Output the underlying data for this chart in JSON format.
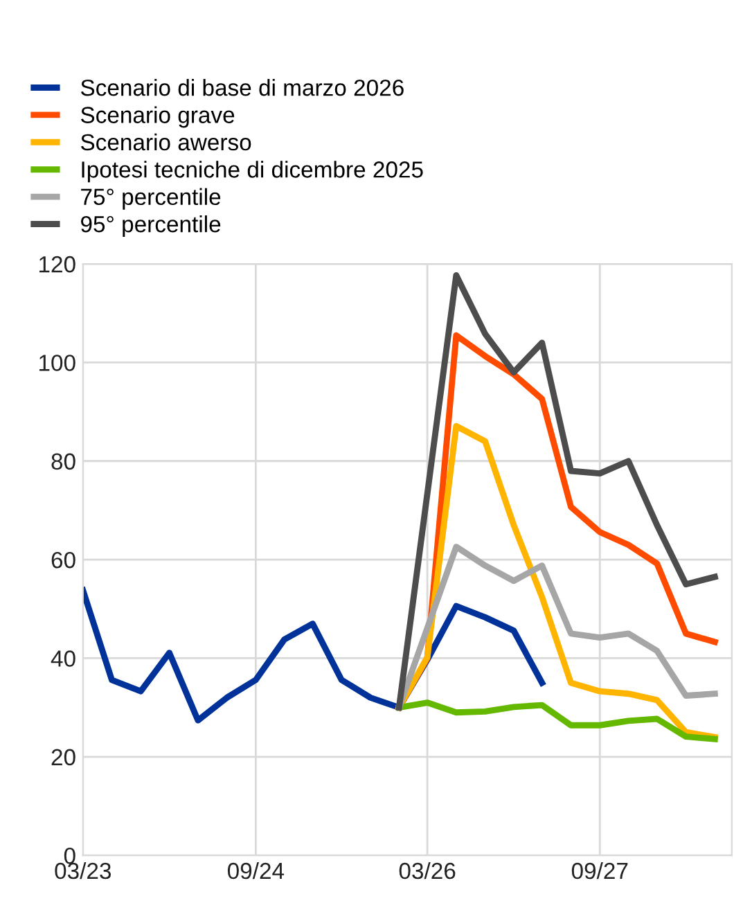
{
  "chart_data": {
    "type": "line",
    "series": [
      {
        "name": "Scenario di base di marzo 2026",
        "color": "#003299",
        "x": [
          "2023-03",
          "2023-06",
          "2023-09",
          "2023-12",
          "2024-03",
          "2024-06",
          "2024-09",
          "2024-12",
          "2025-03",
          "2025-06",
          "2025-09",
          "2025-12",
          "2026-03",
          "2026-06",
          "2026-09",
          "2026-12",
          "2027-03"
        ],
        "values": [
          53.8,
          35.6,
          33.3,
          41.1,
          27.4,
          32,
          35.6,
          43.8,
          47,
          35.6,
          32,
          30,
          39.7,
          50.6,
          48.3,
          45.6,
          35
        ]
      },
      {
        "name": "Scenario grave",
        "color": "#ff4b00",
        "x": [
          "2025-12",
          "2026-03",
          "2026-06",
          "2026-09",
          "2026-12",
          "2027-03",
          "2027-06",
          "2027-09",
          "2027-12",
          "2028-03",
          "2028-06",
          "2028-09"
        ],
        "values": [
          30,
          40,
          105.5,
          101.3,
          97.6,
          92.6,
          70.7,
          65.6,
          63,
          59.2,
          45,
          43.3
        ]
      },
      {
        "name": "Scenario awerso",
        "color": "#ffb400",
        "x": [
          "2025-12",
          "2026-03",
          "2026-06",
          "2026-09",
          "2026-12",
          "2027-03",
          "2027-06",
          "2027-09",
          "2027-12",
          "2028-03",
          "2028-06",
          "2028-09"
        ],
        "values": [
          30,
          40.2,
          87.1,
          84,
          67,
          52.4,
          35,
          33.3,
          32.8,
          31.5,
          25,
          24
        ]
      },
      {
        "name": "Ipotesi tecniche di dicembre 2025",
        "color": "#65b800",
        "x": [
          "2025-12",
          "2026-03",
          "2026-06",
          "2026-09",
          "2026-12",
          "2027-03",
          "2027-06",
          "2027-09",
          "2027-12",
          "2028-03",
          "2028-06",
          "2028-09"
        ],
        "values": [
          30,
          31,
          29,
          29.2,
          30.1,
          30.5,
          26.4,
          26.4,
          27.3,
          27.7,
          24.1,
          23.6
        ]
      },
      {
        "name": "75° percentile",
        "color": "#a6a6a6",
        "x": [
          "2025-12",
          "2026-06",
          "2026-09",
          "2026-12",
          "2027-03",
          "2027-06",
          "2027-09",
          "2027-12",
          "2028-03",
          "2028-06",
          "2028-09"
        ],
        "values": [
          30,
          62.6,
          58.8,
          55.7,
          58.8,
          45,
          44.2,
          45,
          41.5,
          32.4,
          32.8
        ]
      },
      {
        "name": "95° percentile",
        "color": "#4d4d4d",
        "x": [
          "2025-12",
          "2026-06",
          "2026-09",
          "2026-12",
          "2027-03",
          "2027-06",
          "2027-09",
          "2027-12",
          "2028-03",
          "2028-06",
          "2028-09"
        ],
        "values": [
          30,
          117.7,
          105.8,
          98,
          104,
          78,
          77.5,
          80,
          67,
          55,
          56.5
        ]
      }
    ],
    "xlim": [
      "2023-03",
      "2028-10-25"
    ],
    "xticks": [
      {
        "value": "2023-03",
        "label": "03/23"
      },
      {
        "value": "2024-09",
        "label": "09/24"
      },
      {
        "value": "2026-03",
        "label": "03/26"
      },
      {
        "value": "2027-09",
        "label": "09/27"
      }
    ],
    "ylim": [
      0,
      120
    ],
    "yticks": [
      0,
      20,
      40,
      60,
      80,
      100,
      120
    ],
    "grid": true,
    "legend": "top left",
    "marker": "none",
    "line_style": "solid"
  }
}
